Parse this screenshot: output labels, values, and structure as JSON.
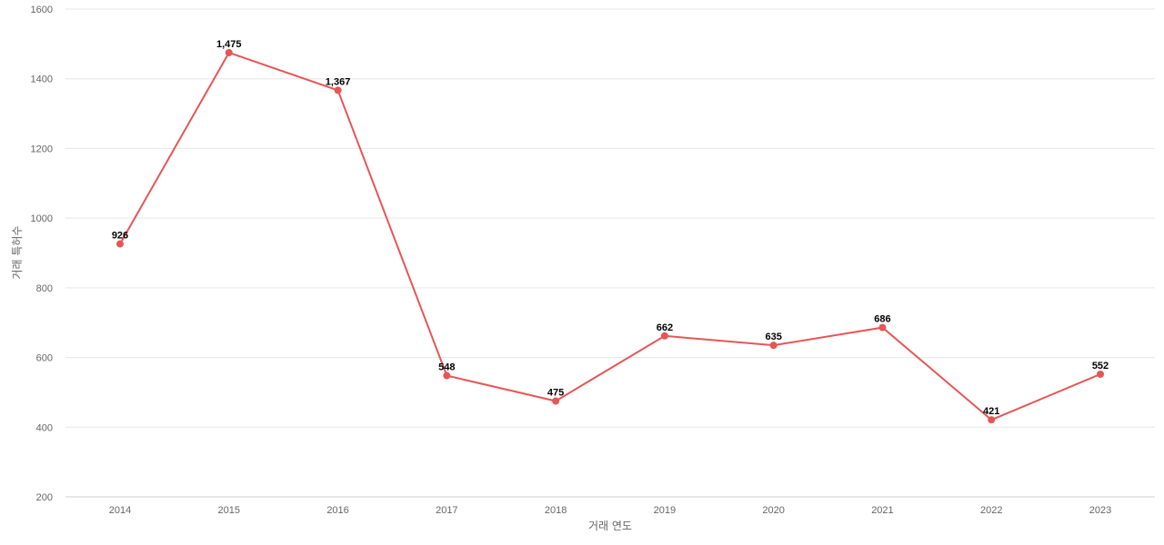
{
  "chart_data": {
    "type": "line",
    "title": "",
    "xlabel": "거래 연도",
    "ylabel": "거래 특허수",
    "ylim": [
      200,
      1600
    ],
    "yticks": [
      200,
      400,
      600,
      800,
      1000,
      1200,
      1400,
      1600
    ],
    "grid": true,
    "categories": [
      "2014",
      "2015",
      "2016",
      "2017",
      "2018",
      "2019",
      "2020",
      "2021",
      "2022",
      "2023"
    ],
    "series": [
      {
        "values": [
          926,
          1475,
          1367,
          548,
          475,
          662,
          635,
          686,
          421,
          552
        ],
        "data_labels": [
          "926",
          "1,475",
          "1,367",
          "548",
          "475",
          "662",
          "635",
          "686",
          "421",
          "552"
        ],
        "color": "#e85555"
      }
    ]
  }
}
